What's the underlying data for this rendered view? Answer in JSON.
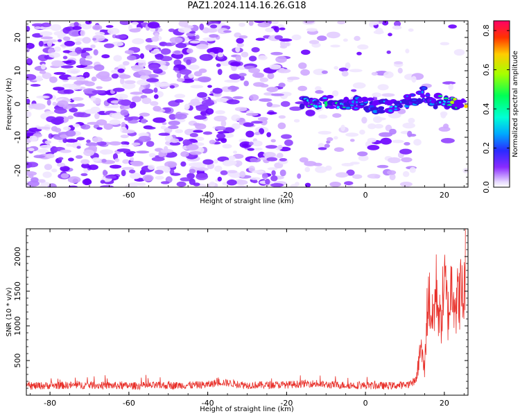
{
  "title": "PAZ1.2024.114.16.26.G18",
  "chart_data": [
    {
      "type": "heatmap",
      "xlabel": "Height of straight line (km)",
      "ylabel": "Frequency (Hz)",
      "xlim": [
        -86,
        26
      ],
      "ylim": [
        -25,
        25
      ],
      "xticks": [
        -80,
        -60,
        -40,
        -20,
        0,
        20
      ],
      "yticks": [
        -20,
        -10,
        0,
        10,
        20
      ],
      "colorbar": {
        "label": "Normalized spectral amplitude",
        "range": [
          0.0,
          0.85
        ],
        "ticks": [
          0.0,
          0.2,
          0.4,
          0.6,
          0.8
        ],
        "colormap": "gist_rainbow_r",
        "colors": [
          "#ffffff",
          "#6a00ff",
          "#0044ff",
          "#00e5ff",
          "#00ff44",
          "#c8ff00",
          "#ff2200",
          "#ff0066"
        ]
      },
      "signal_track": [
        {
          "x": -16,
          "y": 0.0,
          "v": 0.35
        },
        {
          "x": -10,
          "y": 0.5,
          "v": 0.45
        },
        {
          "x": -5,
          "y": 0.0,
          "v": 0.4
        },
        {
          "x": -3,
          "y": 0.5,
          "v": 0.3
        },
        {
          "x": 0,
          "y": 0.0,
          "v": 0.3
        },
        {
          "x": 5,
          "y": -1.0,
          "v": 0.35
        },
        {
          "x": 10,
          "y": 0.5,
          "v": 0.3
        },
        {
          "x": 14,
          "y": 2.0,
          "v": 0.2
        },
        {
          "x": 15,
          "y": 3.0,
          "v": 0.25
        },
        {
          "x": 17,
          "y": 1.0,
          "v": 0.35
        },
        {
          "x": 20,
          "y": 0.5,
          "v": 0.45
        },
        {
          "x": 22,
          "y": 0.0,
          "v": 0.55
        },
        {
          "x": 25,
          "y": -0.5,
          "v": 0.65
        }
      ]
    },
    {
      "type": "line",
      "xlabel": "Height of straight line (km)",
      "ylabel": "SNR (10 * v/v)",
      "xlim": [
        -86,
        26
      ],
      "ylim": [
        0,
        2400
      ],
      "xticks": [
        -80,
        -60,
        -40,
        -20,
        0,
        20
      ],
      "yticks": [
        500,
        1000,
        1500,
        2000
      ],
      "color": "#e8302a",
      "series": [
        {
          "x": [
            -86,
            -80,
            -70,
            -60,
            -50,
            -40,
            -37,
            -30,
            -20,
            -14,
            -10,
            0,
            5,
            10,
            12,
            13,
            14,
            15,
            15.5,
            16,
            17,
            18,
            19,
            20,
            21,
            22,
            23,
            24,
            25,
            25.5
          ],
          "values": [
            130,
            140,
            145,
            135,
            140,
            150,
            190,
            145,
            150,
            170,
            150,
            140,
            135,
            145,
            180,
            250,
            700,
            350,
            1100,
            1450,
            1050,
            1550,
            1000,
            1650,
            1150,
            1700,
            1300,
            1500,
            1400,
            2300
          ]
        }
      ]
    }
  ]
}
